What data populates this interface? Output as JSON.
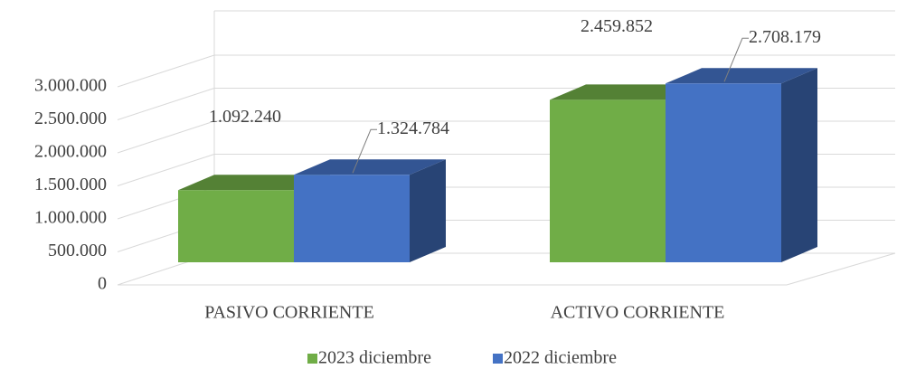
{
  "chart_data": {
    "type": "bar3d",
    "categories": [
      "PASIVO CORRIENTE",
      "ACTIVO CORRIENTE"
    ],
    "series": [
      {
        "name": "2023 diciembre",
        "color": "#70ad47",
        "values": [
          1092240,
          2459852
        ],
        "value_labels": [
          "1.092.240",
          "2.459.852"
        ]
      },
      {
        "name": "2022 diciembre",
        "color": "#4472c4",
        "values": [
          1324784,
          2708179
        ],
        "value_labels": [
          "1.324.784",
          "2.708.179"
        ]
      }
    ],
    "ylim": [
      0,
      3000000
    ],
    "yticks": [
      0,
      {
        "value": 500000,
        "label": "500.000"
      },
      {
        "value": 1000000,
        "label": "1.000.000"
      },
      {
        "value": 1500000,
        "label": "1.500.000"
      },
      {
        "value": 2000000,
        "label": "2.000.000"
      },
      {
        "value": 2500000,
        "label": "2.500.000"
      },
      {
        "value": 3000000,
        "label": "3.000.000"
      }
    ],
    "grid": true,
    "legend": "bottom"
  }
}
